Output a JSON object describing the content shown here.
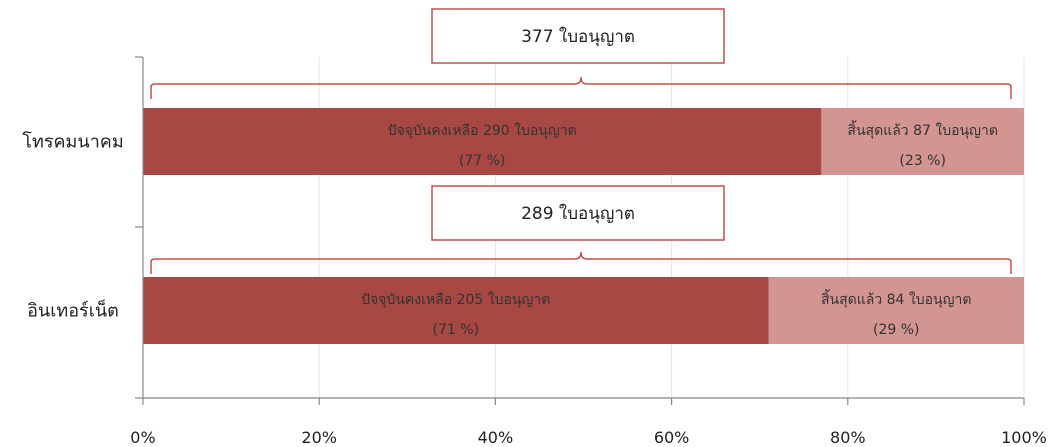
{
  "chart_data": {
    "type": "bar",
    "orientation": "horizontal",
    "stacked": "percent",
    "categories": [
      "โทรคมนาคม",
      "อินเทอร์เน็ต"
    ],
    "series": [
      {
        "key": "active",
        "color": "#a84844",
        "values": [
          77,
          71
        ],
        "counts": [
          290,
          205
        ],
        "labels": [
          "ปัจจุบันคงเหลือ 290 ใบอนุญาต",
          "ปัจจุบันคงเหลือ 205 ใบอนุญาต"
        ],
        "pct_labels": [
          "(77 %)",
          "(71 %)"
        ]
      },
      {
        "key": "expired",
        "color": "#d39591",
        "values": [
          23,
          29
        ],
        "counts": [
          87,
          84
        ],
        "labels": [
          "สิ้นสุดแล้ว 87 ใบอนุญาต",
          "สิ้นสุดแล้ว 84 ใบอนุญาต"
        ],
        "pct_labels": [
          "(23 %)",
          "(29 %)"
        ]
      }
    ],
    "totals": [
      377,
      289
    ],
    "total_labels": [
      "377 ใบอนุญาต",
      "289 ใบอนุญาต"
    ],
    "x_ticks": [
      0,
      20,
      40,
      60,
      80,
      100
    ],
    "x_tick_labels": [
      "0%",
      "20%",
      "40%",
      "60%",
      "80%",
      "100%"
    ],
    "xlim": [
      0,
      100
    ],
    "grid": "vertical",
    "legend": "none",
    "callout_border_color": "#c0504d"
  }
}
